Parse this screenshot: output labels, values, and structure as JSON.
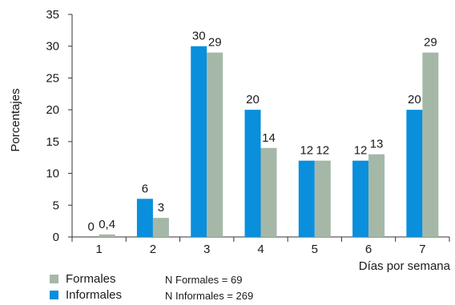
{
  "chart_data": {
    "type": "bar",
    "categories": [
      "1",
      "2",
      "3",
      "4",
      "5",
      "6",
      "7"
    ],
    "series": [
      {
        "name": "Informales",
        "color": "#0a8fdc",
        "values": [
          0,
          6,
          30,
          20,
          12,
          12,
          20
        ],
        "labels": [
          "0",
          "6",
          "30",
          "20",
          "12",
          "12",
          "20"
        ]
      },
      {
        "name": "Formales",
        "color": "#a5b8a8",
        "values": [
          0.4,
          3,
          29,
          14,
          12,
          13,
          29
        ],
        "labels": [
          "0,4",
          "3",
          "29",
          "14",
          "12",
          "13",
          "29"
        ]
      }
    ],
    "xlabel": "Días por semana",
    "ylabel": "Porcentajes",
    "ylim": [
      0,
      35
    ],
    "yticks": [
      "0",
      "5",
      "10",
      "15",
      "20",
      "25",
      "30",
      "35"
    ],
    "grid": false,
    "legend_position": "bottom-left",
    "legend": [
      {
        "label": "Formales",
        "color": "#a5b8a8",
        "note": "N Formales = 69"
      },
      {
        "label": "Informales",
        "color": "#0a8fdc",
        "note": "N Informales = 269"
      }
    ]
  }
}
